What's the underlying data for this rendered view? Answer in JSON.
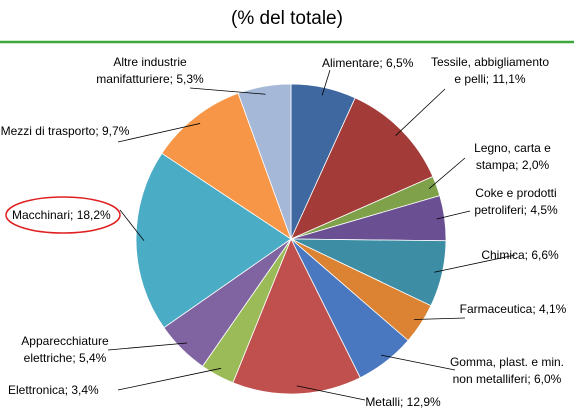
{
  "chart_data": {
    "type": "pie",
    "title": "(% del totale)",
    "value_labels": [
      "Alimentare; 6,5%",
      "Tessile, abbigliamento e pelli; 11,1%",
      "Legno, carta e stampa; 2,0%",
      "Coke e prodotti petroliferi; 4,5%",
      "Chimica; 6,6%",
      "Farmaceutica; 4,1%",
      "Gomma, plast. e min. non metalliferi; 6,0%",
      "Metalli; 12,9%",
      "Elettronica; 3,4%",
      "Apparecchiature elettriche; 5,4%",
      "Macchinari; 18,2%",
      "Mezzi di trasporto; 9,7%",
      "Altre industrie manifatturiere; 5,3%"
    ],
    "values": [
      6.5,
      11.1,
      2.0,
      4.5,
      6.6,
      4.1,
      6.0,
      12.9,
      3.4,
      5.4,
      18.2,
      9.7,
      5.3
    ],
    "colors": [
      "#3f67a0",
      "#a33b38",
      "#7fa14a",
      "#6a5092",
      "#3d8ea4",
      "#db8233",
      "#4a78c0",
      "#c0504d",
      "#9bbb59",
      "#8064a2",
      "#4bacc6",
      "#f79646",
      "#a5b8d8"
    ]
  }
}
